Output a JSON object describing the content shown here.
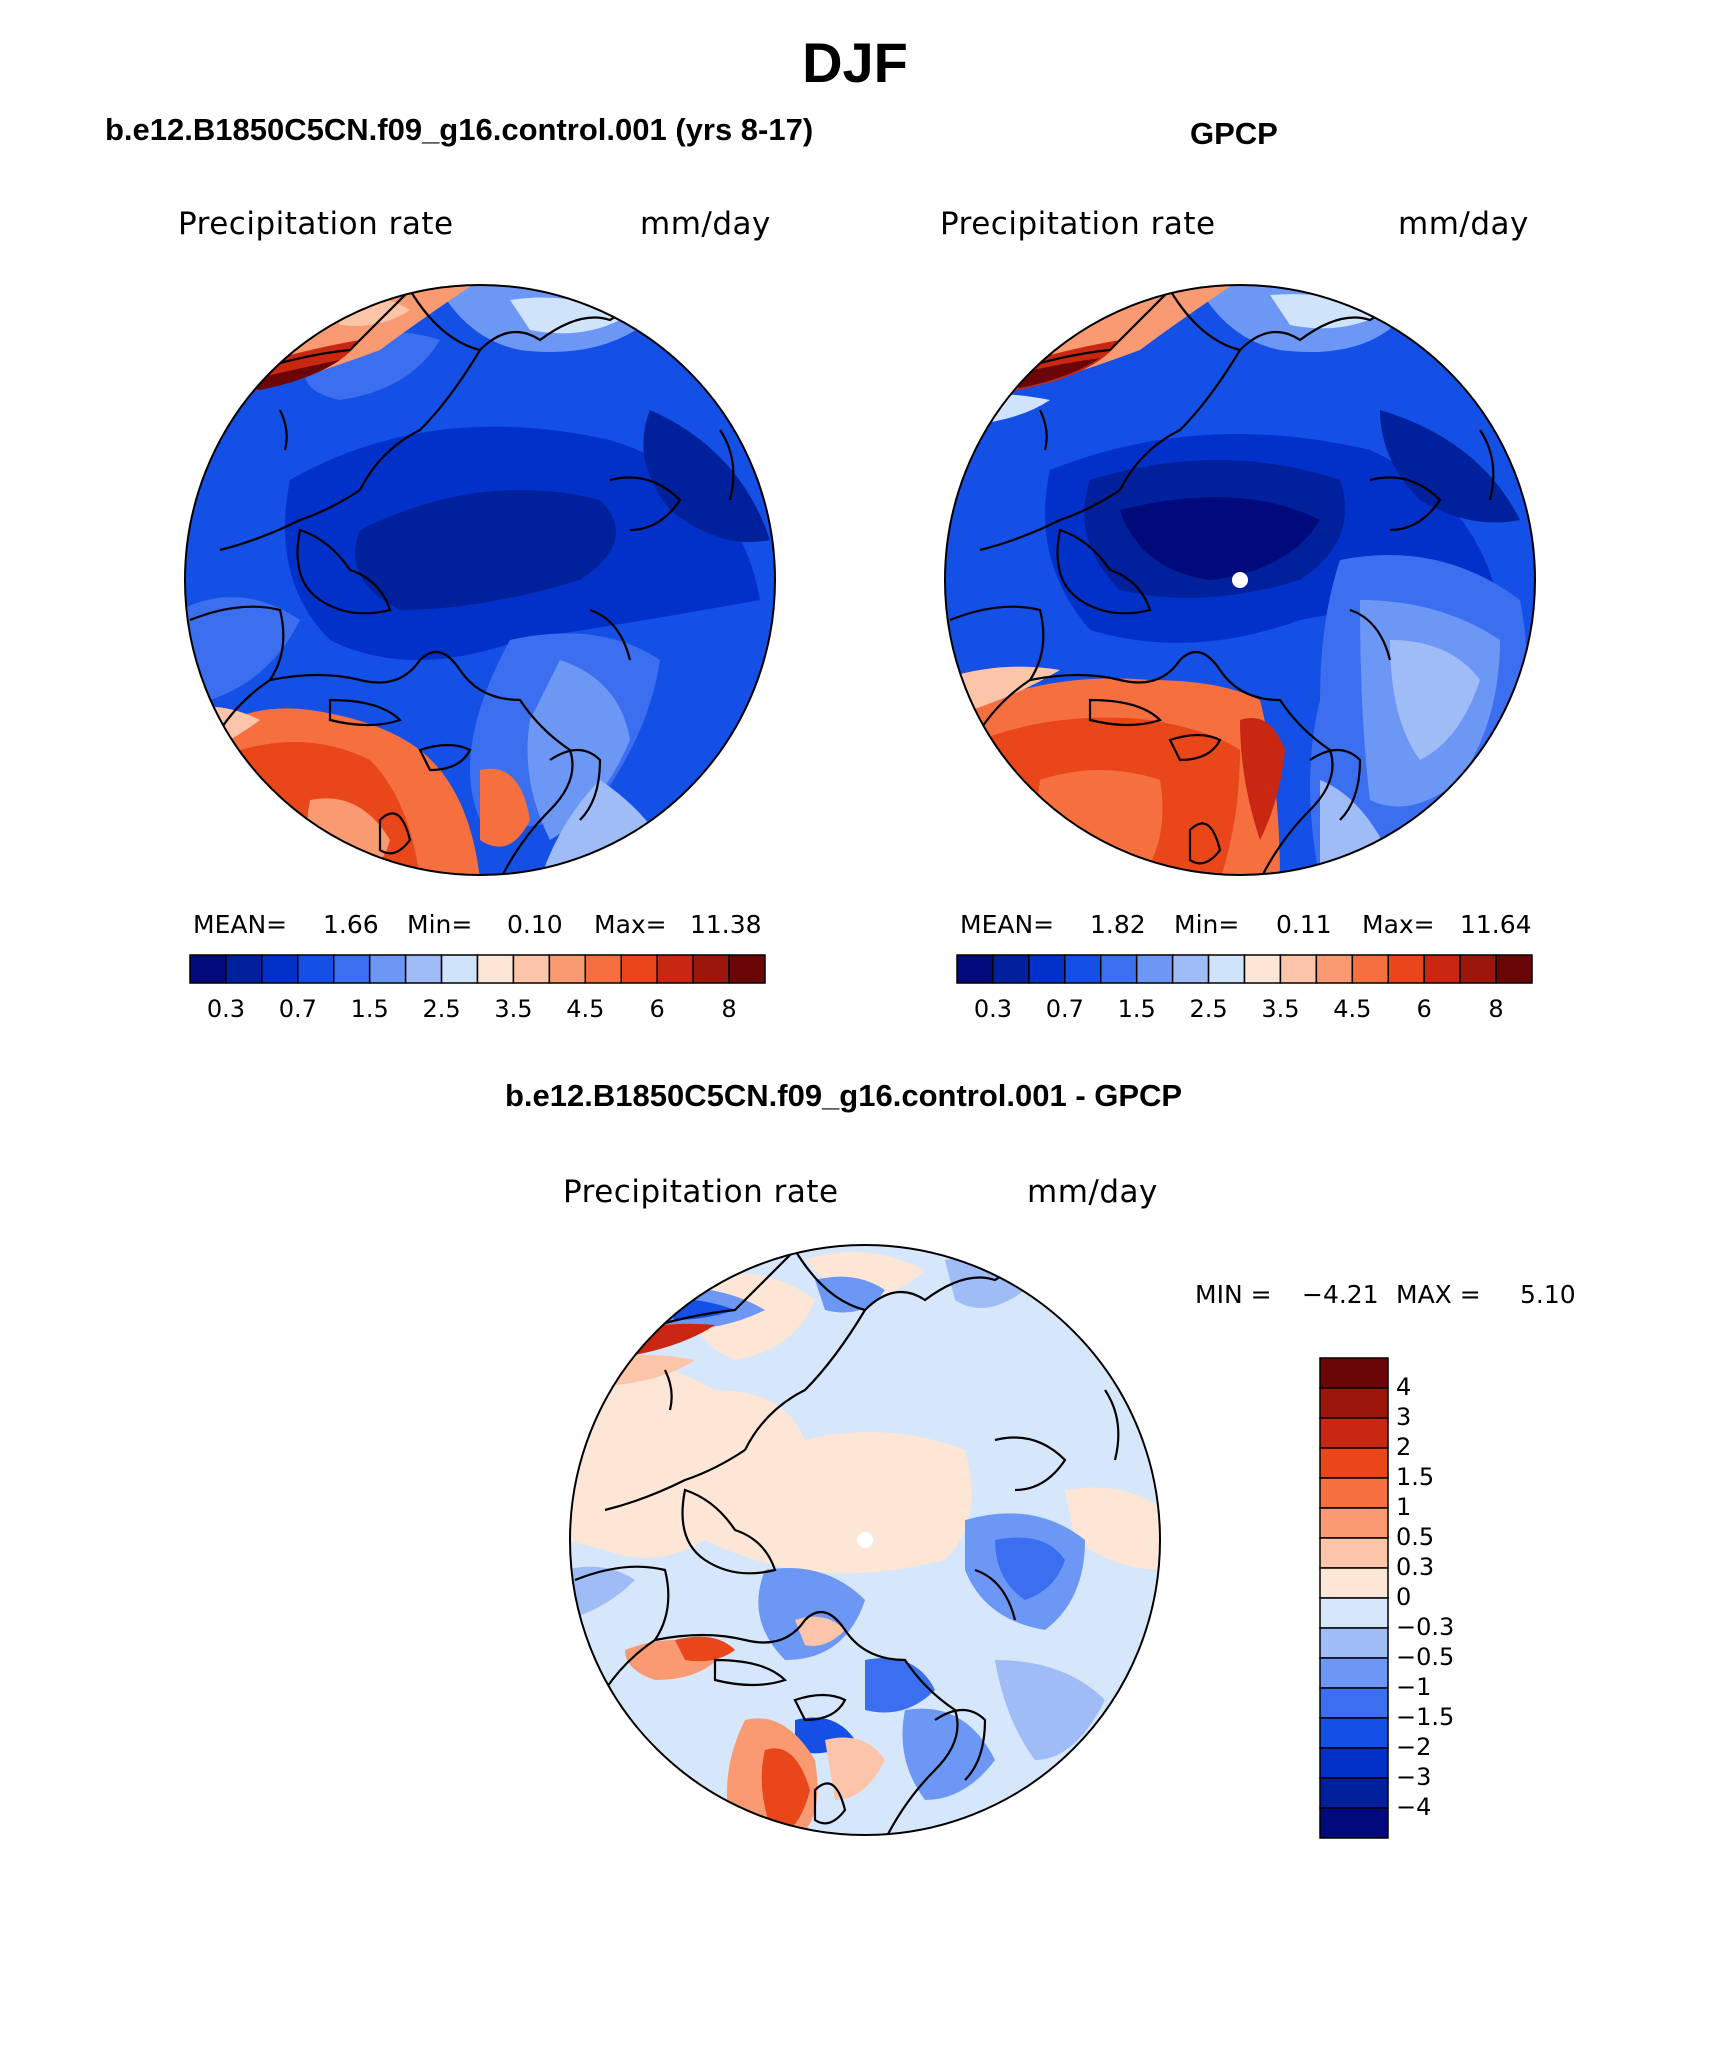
{
  "figure": {
    "season": "DJF"
  },
  "colors": {
    "abs_scale": [
      "#000a7a",
      "#00209c",
      "#0131c8",
      "#1450e6",
      "#3b6ff0",
      "#6c97f5",
      "#9fbcf7",
      "#cfe3fb",
      "#fde6d6",
      "#fcc4a8",
      "#f99a72",
      "#f6703f",
      "#e9461a",
      "#c92712",
      "#9d160b",
      "#6b0606"
    ],
    "diff_scale": [
      "#000a7a",
      "#00209c",
      "#0131c8",
      "#1450e6",
      "#3b6ff0",
      "#6c97f5",
      "#9fbcf7",
      "#d6e7fc",
      "#fde6d6",
      "#fcc4a8",
      "#f99a72",
      "#f6703f",
      "#e9461a",
      "#c92712",
      "#8a1008"
    ]
  },
  "panels": [
    {
      "id": "model",
      "title": "b.e12.B1850C5CN.f09_g16.control.001 (yrs 8-17)",
      "variable": "Precipitation rate",
      "units": "mm/day",
      "mean_label": "MEAN=",
      "mean": "1.66",
      "min_label": "Min=",
      "min": "0.10",
      "max_label": "Max=",
      "max": "11.38",
      "colorbar_ticks": [
        "0.3",
        "0.7",
        "1.5",
        "2.5",
        "3.5",
        "4.5",
        "6",
        "8"
      ]
    },
    {
      "id": "obs",
      "title": "GPCP",
      "variable": "Precipitation rate",
      "units": "mm/day",
      "mean_label": "MEAN=",
      "mean": "1.82",
      "min_label": "Min=",
      "min": "0.11",
      "max_label": "Max=",
      "max": "11.64",
      "colorbar_ticks": [
        "0.3",
        "0.7",
        "1.5",
        "2.5",
        "3.5",
        "4.5",
        "6",
        "8"
      ]
    }
  ],
  "difference": {
    "title": "b.e12.B1850C5CN.f09_g16.control.001 - GPCP",
    "variable": "Precipitation rate",
    "units": "mm/day",
    "min_label": "MIN =",
    "min": "−4.21",
    "max_label": "MAX =",
    "max": "5.10",
    "colorbar_ticks": [
      "4",
      "3",
      "2",
      "1.5",
      "1",
      "0.5",
      "0.3",
      "0",
      "−0.3",
      "−0.5",
      "−1",
      "−1.5",
      "−2",
      "−3",
      "−4"
    ]
  }
}
